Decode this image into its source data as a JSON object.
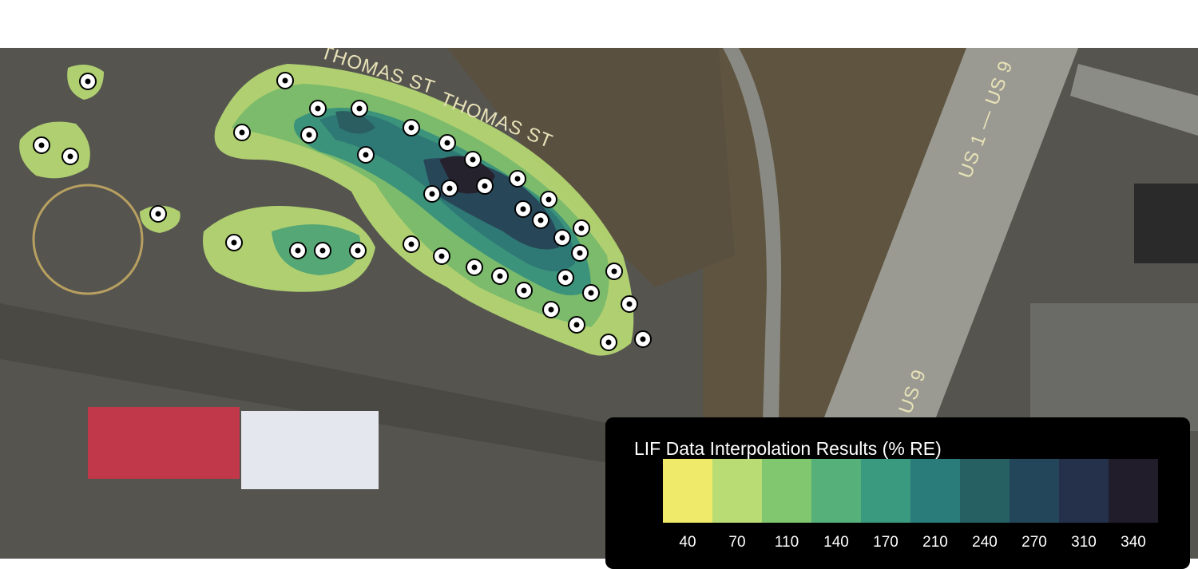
{
  "map_labels": [
    "THOMAS ST",
    "THOMAS ST",
    "US 1 — US 9",
    "US 9"
  ],
  "legend": {
    "title": "LIF Data Interpolation Results (% RE)",
    "colors": [
      "#f0ea6a",
      "#b9dd74",
      "#80c76f",
      "#56b07a",
      "#3a9a80",
      "#2a7c7a",
      "#266063",
      "#23465a",
      "#25304a",
      "#221d2a"
    ],
    "labels": [
      40,
      70,
      110,
      140,
      170,
      210,
      240,
      270,
      310,
      340
    ]
  }
}
